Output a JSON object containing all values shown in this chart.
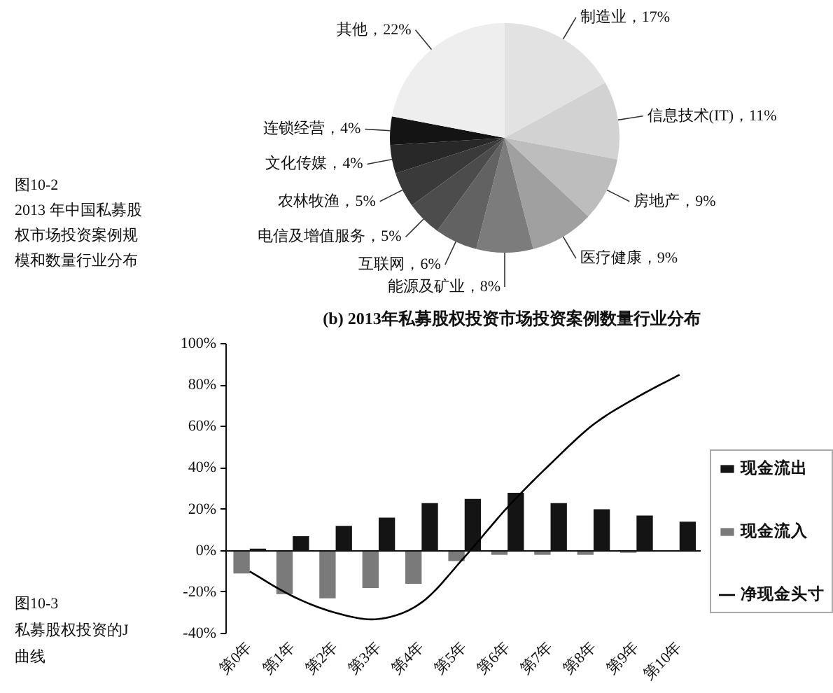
{
  "chart_data": [
    {
      "type": "pie",
      "title": "(b) 2013年私募股权投资市场投资案例数量行业分布",
      "categories": [
        "制造业，17%",
        "信息技术(IT)，11%",
        "房地产，9%",
        "医疗健康，9%",
        "能源及矿业，8%",
        "互联网，6%",
        "电信及增值服务，5%",
        "农林牧渔，5%",
        "文化传媒，4%",
        "连锁经营，4%",
        "其他，22%"
      ],
      "values": [
        17,
        11,
        9,
        9,
        8,
        6,
        5,
        5,
        4,
        4,
        22
      ],
      "colors": [
        "#e2e2e2",
        "#d2d2d2",
        "#bdbdbd",
        "#a0a0a0",
        "#7c7c7c",
        "#626262",
        "#4c4c4c",
        "#3a3a3a",
        "#282828",
        "#141414",
        "#eeeeee"
      ],
      "annotations": [
        "图10-2",
        "2013 年中国私募股权市场投资案例规模和数量行业分布"
      ]
    },
    {
      "type": "bar",
      "categories": [
        "第0年",
        "第1年",
        "第2年",
        "第3年",
        "第4年",
        "第5年",
        "第6年",
        "第7年",
        "第8年",
        "第9年",
        "第10年"
      ],
      "series": [
        {
          "name": "现金流出",
          "color": "#141414",
          "values": [
            1,
            7,
            12,
            16,
            23,
            25,
            28,
            23,
            20,
            17,
            14
          ]
        },
        {
          "name": "现金流入",
          "color": "#7a7a7a",
          "values": [
            -11,
            -21,
            -23,
            -18,
            -16,
            -5,
            -2,
            -2,
            -2,
            -1,
            null
          ]
        },
        {
          "name": "净现金头寸",
          "type": "line",
          "color": "#000000",
          "values": [
            -10,
            -22,
            -30,
            -33,
            -25,
            -3,
            21,
            42,
            61,
            74,
            85
          ]
        }
      ],
      "ylim": [
        -40,
        100
      ],
      "yticks": [
        {
          "value": 100,
          "label": "100%"
        },
        {
          "value": 80,
          "label": "80%"
        },
        {
          "value": 60,
          "label": "60%"
        },
        {
          "value": 40,
          "label": "40%"
        },
        {
          "value": 20,
          "label": "20%"
        },
        {
          "value": 0,
          "label": "0%"
        },
        {
          "value": -20,
          "label": "-20%"
        },
        {
          "value": -40,
          "label": "-40%"
        }
      ],
      "legend": "right",
      "annotations": [
        "图10-3",
        "私募股权投资的J曲线"
      ]
    }
  ]
}
